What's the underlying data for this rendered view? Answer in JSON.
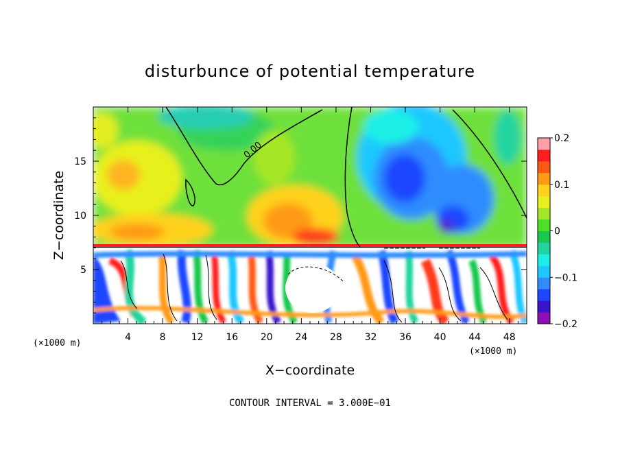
{
  "chart_data": {
    "type": "heatmap",
    "title": "disturbunce of potential temperature",
    "xlabel": "X−coordinate",
    "ylabel": "Z−coordinate",
    "x_unit_label": "(×1000 m)",
    "x_ticks": [
      4,
      8,
      12,
      16,
      20,
      24,
      28,
      32,
      36,
      40,
      44,
      48
    ],
    "y_ticks": [
      5,
      10,
      15
    ],
    "xlim": [
      0,
      50
    ],
    "ylim": [
      0,
      20
    ],
    "footer": "CONTOUR INTERVAL = 3.000E−01",
    "contour_label": "0.00",
    "colorbar": {
      "range": [
        -0.2,
        0.2
      ],
      "ticks": [
        {
          "value": 0.2,
          "label": "0.2"
        },
        {
          "value": 0.1,
          "label": "0.1"
        },
        {
          "value": 0.0,
          "label": "0"
        },
        {
          "value": -0.1,
          "label": "−0.1"
        },
        {
          "value": -0.2,
          "label": "−0.2"
        }
      ],
      "colors": [
        "#8b0fb4",
        "#3a14cc",
        "#1e46ff",
        "#2f8cff",
        "#1ec8ff",
        "#1cf0e6",
        "#22d4a0",
        "#19c84c",
        "#4ee028",
        "#a6e628",
        "#e6f01e",
        "#ffd21e",
        "#ff9a14",
        "#ff5a14",
        "#ff1e1e",
        "#ff9fa8"
      ]
    }
  }
}
